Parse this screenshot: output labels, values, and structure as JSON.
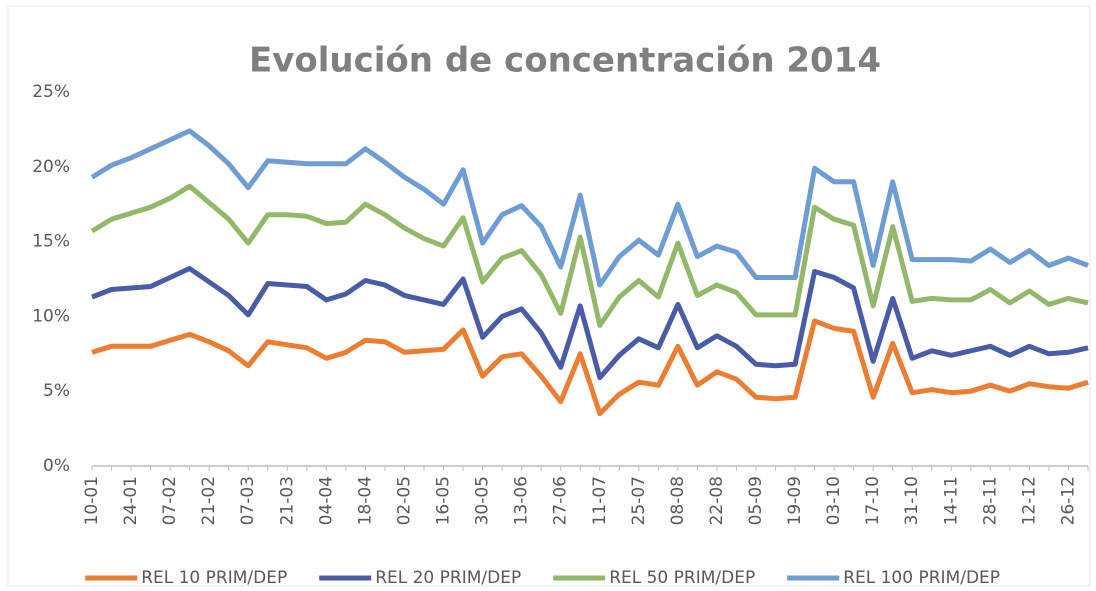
{
  "chart_data": {
    "type": "line",
    "title": "Evolución de concentración 2014",
    "categories": [
      "10-01",
      null,
      "24-01",
      null,
      "07-02",
      null,
      "21-02",
      null,
      "07-03",
      null,
      "21-03",
      null,
      "04-04",
      null,
      "18-04",
      null,
      "02-05",
      null,
      "16-05",
      null,
      "30-05",
      null,
      "13-06",
      null,
      "27-06",
      null,
      "11-07",
      null,
      "25-07",
      null,
      "08-08",
      null,
      "22-08",
      null,
      "05-09",
      null,
      "19-09",
      null,
      "03-10",
      null,
      "17-10",
      null,
      "31-10",
      null,
      "14-11",
      null,
      "28-11",
      null,
      "12-12",
      null,
      "26-12",
      null
    ],
    "series": [
      {
        "name": "REL 10 PRIM/DEP",
        "color": "#ed7d31",
        "values": [
          7.6,
          8.0,
          8.0,
          8.0,
          8.4,
          8.8,
          8.3,
          7.7,
          6.7,
          8.3,
          8.1,
          7.9,
          7.2,
          7.6,
          8.4,
          8.3,
          7.6,
          7.7,
          7.8,
          9.1,
          6.0,
          7.3,
          7.5,
          6.0,
          4.3,
          7.5,
          3.5,
          4.8,
          5.6,
          5.4,
          8.0,
          5.4,
          6.3,
          5.8,
          4.6,
          4.5,
          4.6,
          9.7,
          9.2,
          9.0,
          4.6,
          8.2,
          4.9,
          5.1,
          4.9,
          5.0,
          5.4,
          5.0,
          5.5,
          5.3,
          5.2,
          5.6
        ]
      },
      {
        "name": "REL 20 PRIM/DEP",
        "color": "#4a5ca8",
        "values": [
          11.3,
          11.8,
          11.9,
          12.0,
          12.6,
          13.2,
          12.3,
          11.4,
          10.1,
          12.2,
          12.1,
          12.0,
          11.1,
          11.5,
          12.4,
          12.1,
          11.4,
          11.1,
          10.8,
          12.5,
          8.6,
          10.0,
          10.5,
          8.9,
          6.6,
          10.7,
          5.9,
          7.4,
          8.5,
          7.9,
          10.8,
          7.9,
          8.7,
          8.0,
          6.8,
          6.7,
          6.8,
          13.0,
          12.6,
          11.9,
          7.0,
          11.2,
          7.2,
          7.7,
          7.4,
          7.7,
          8.0,
          7.4,
          8.0,
          7.5,
          7.6,
          7.9
        ]
      },
      {
        "name": "REL 50 PRIM/DEP",
        "color": "#94b86a",
        "values": [
          15.7,
          16.5,
          16.9,
          17.3,
          17.9,
          18.7,
          17.6,
          16.5,
          14.9,
          16.8,
          16.8,
          16.7,
          16.2,
          16.3,
          17.5,
          16.8,
          15.9,
          15.2,
          14.7,
          16.6,
          12.3,
          13.9,
          14.4,
          12.8,
          10.2,
          15.3,
          9.4,
          11.3,
          12.4,
          11.3,
          14.9,
          11.4,
          12.1,
          11.6,
          10.1,
          10.1,
          10.1,
          17.3,
          16.5,
          16.1,
          10.7,
          16.0,
          11.0,
          11.2,
          11.1,
          11.1,
          11.8,
          10.9,
          11.7,
          10.8,
          11.2,
          10.9
        ]
      },
      {
        "name": "REL 100 PRIM/DEP",
        "color": "#6d9dd4",
        "values": [
          19.3,
          20.1,
          20.6,
          21.2,
          21.8,
          22.4,
          21.4,
          20.2,
          18.6,
          20.4,
          20.3,
          20.2,
          20.2,
          20.2,
          21.2,
          20.3,
          19.3,
          18.5,
          17.5,
          19.8,
          14.9,
          16.8,
          17.4,
          16.0,
          13.3,
          18.1,
          12.1,
          14.0,
          15.1,
          14.1,
          17.5,
          14.0,
          14.7,
          14.3,
          12.6,
          12.6,
          12.6,
          19.9,
          19.0,
          19.0,
          13.4,
          19.0,
          13.8,
          13.8,
          13.8,
          13.7,
          14.5,
          13.6,
          14.4,
          13.4,
          13.9,
          13.4
        ]
      }
    ],
    "ylim": [
      0,
      25
    ],
    "yticks": [
      {
        "value": 0,
        "label": "0%"
      },
      {
        "value": 5,
        "label": "5%"
      },
      {
        "value": 10,
        "label": "10%"
      },
      {
        "value": 15,
        "label": "15%"
      },
      {
        "value": 20,
        "label": "20%"
      },
      {
        "value": 25,
        "label": "25%"
      }
    ],
    "grid": false,
    "legend": "bottom"
  }
}
